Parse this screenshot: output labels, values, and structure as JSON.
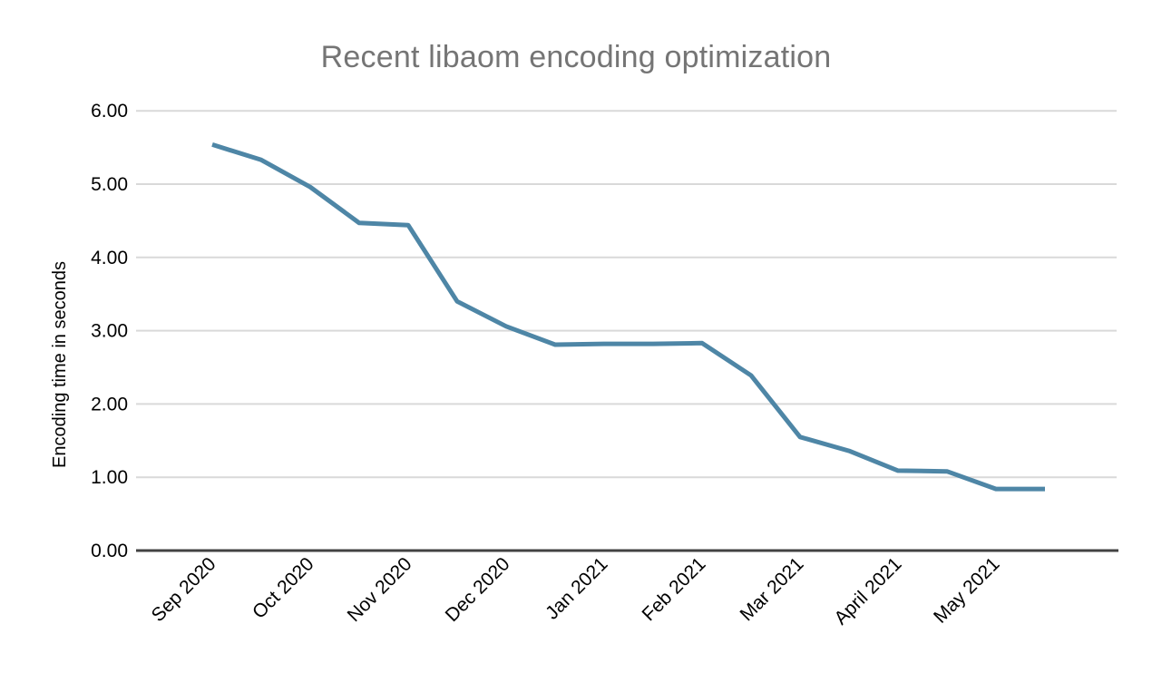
{
  "chart_data": {
    "type": "line",
    "title": "Recent libaom encoding optimization",
    "xlabel": "",
    "ylabel": "Encoding time in seconds",
    "ylim": [
      0,
      6
    ],
    "y_ticks": [
      "0.00",
      "1.00",
      "2.00",
      "3.00",
      "4.00",
      "5.00",
      "6.00"
    ],
    "grid": true,
    "legend": "none",
    "categories": [
      "Sep 2020",
      "Oct 2020",
      "Nov 2020",
      "Dec 2020",
      "Jan 2021",
      "Feb 2021",
      "Mar 2021",
      "April 2021",
      "May 2021"
    ],
    "points_per_month": 2,
    "series": [
      {
        "name": "Encoding time in seconds",
        "values": [
          5.54,
          5.33,
          4.96,
          4.47,
          4.44,
          3.4,
          3.06,
          2.81,
          2.82,
          2.82,
          2.83,
          2.39,
          1.55,
          1.36,
          1.09,
          1.08,
          0.84,
          0.84
        ]
      }
    ],
    "colors": {
      "line": "#4e86a6",
      "title_text": "#757575",
      "axis_text": "#000000",
      "grid_line": "#d9d9d9",
      "axis_line": "#424242",
      "background": "#ffffff"
    }
  }
}
